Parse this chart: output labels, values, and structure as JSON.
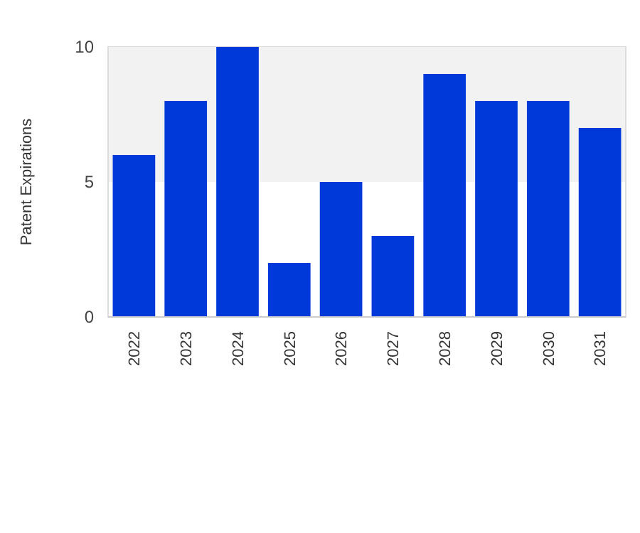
{
  "chart_data": {
    "type": "bar",
    "ylabel": "Patent Expirations",
    "categories": [
      "2022",
      "2023",
      "2024",
      "2025",
      "2026",
      "2027",
      "2028",
      "2029",
      "2030",
      "2031"
    ],
    "values": [
      6,
      8,
      10,
      2,
      5,
      3,
      9,
      8,
      8,
      7
    ],
    "color": "#0039d9",
    "ylim": [
      0,
      10
    ],
    "yticks": [
      0,
      5,
      10
    ],
    "bands": [
      {
        "axis": "y",
        "from": 5,
        "to": 10,
        "color": "#f2f2f2"
      }
    ]
  }
}
